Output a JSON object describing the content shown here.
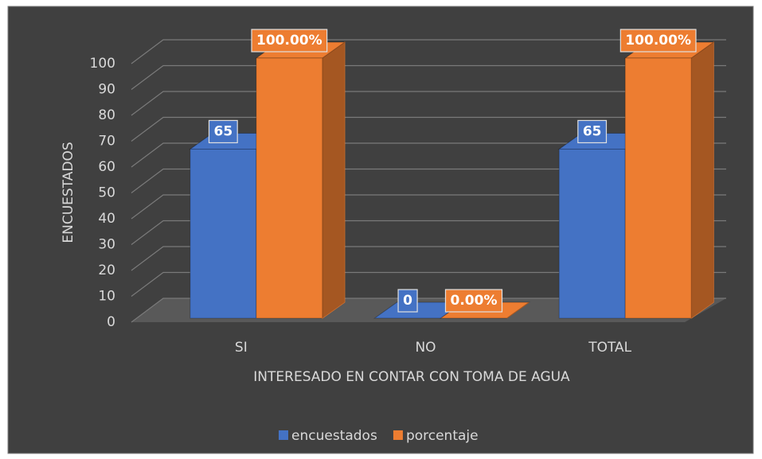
{
  "chart_data": {
    "type": "bar3d",
    "xlabel": "INTERESADO EN CONTAR CON TOMA DE AGUA",
    "ylabel": "ENCUESTADOS",
    "categories": [
      "SI",
      "NO",
      "TOTAL"
    ],
    "series": [
      {
        "name": "encuestados",
        "color": "#4472c4",
        "values": [
          65,
          0,
          65
        ]
      },
      {
        "name": "porcentaje",
        "color": "#ed7d31",
        "values": [
          100,
          0,
          100
        ],
        "value_labels": [
          "100.00%",
          "0.00%",
          "100.00%"
        ]
      }
    ],
    "ylim": [
      0,
      100
    ],
    "yticks": [
      0,
      10,
      20,
      30,
      40,
      50,
      60,
      70,
      80,
      90,
      100
    ],
    "grid": true,
    "legend": "bottom"
  }
}
